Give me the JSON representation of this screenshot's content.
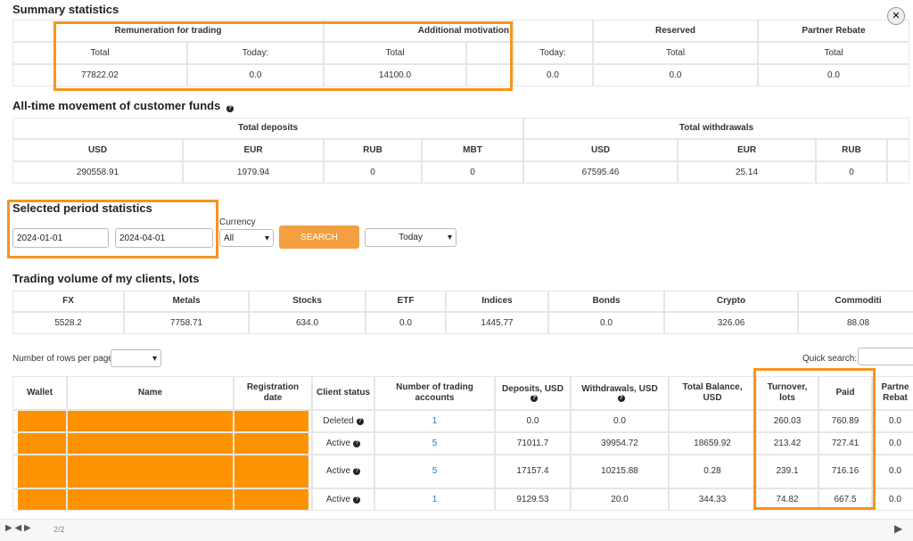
{
  "summary": {
    "title": "Summary statistics",
    "groups": [
      "Remuneration for trading",
      "Additional motivation",
      "Reserved",
      "Partner Rebate"
    ],
    "subheaders": [
      "Total",
      "Today:",
      "Total",
      "Today:",
      "Total",
      "Total"
    ],
    "values": [
      "77822.02",
      "0.0",
      "14100.0",
      "0.0",
      "0.0",
      "0.0"
    ]
  },
  "funds": {
    "title": "All-time movement of customer funds",
    "groups": [
      "Total deposits",
      "Total withdrawals"
    ],
    "currencies": [
      "USD",
      "EUR",
      "RUB",
      "MBT",
      "USD",
      "EUR",
      "RUB"
    ],
    "values": [
      "290558.91",
      "1979.94",
      "0",
      "0",
      "67595.46",
      "25.14",
      "0"
    ]
  },
  "period": {
    "title": "Selected period statistics",
    "date_from": "2024-01-01",
    "date_to": "2024-04-01",
    "currency_label": "Currency",
    "currency": "All",
    "search": "SEARCH",
    "range": "Today"
  },
  "volume": {
    "title": "Trading volume of my clients, lots",
    "headers": [
      "FX",
      "Metals",
      "Stocks",
      "ETF",
      "Indices",
      "Bonds",
      "Crypto",
      "Commoditi"
    ],
    "values": [
      "5528.2",
      "7758.71",
      "634.0",
      "0.0",
      "1445.77",
      "0.0",
      "326.06",
      "88.08"
    ]
  },
  "clients": {
    "rows_per_page": "Number of rows per page",
    "quick_search": "Quick search:",
    "headers": [
      "Wallet",
      "Name",
      "Registration date",
      "Client status",
      "Number of trading accounts",
      "Deposits, USD",
      "Withdrawals, USD",
      "Total Balance, USD",
      "Turnover, lots",
      "Paid",
      "Partne Rebat"
    ],
    "rows": [
      [
        "Deleted",
        "1",
        "0.0",
        "0.0",
        null,
        "260.03",
        "760.89",
        "0.0"
      ],
      [
        "Active",
        "5",
        "71011.7",
        "39954.72",
        "18659.92",
        "213.42",
        "727.41",
        "0.0"
      ],
      [
        "Active",
        "5",
        "17157.4",
        "10215.88",
        "0.28",
        "239.1",
        "716.16",
        "0.0"
      ],
      [
        "Active",
        "1",
        "9129.53",
        "20.0",
        "344.33",
        "74.82",
        "667.5",
        "0.0"
      ]
    ]
  },
  "footer": {
    "page": "2/2"
  }
}
